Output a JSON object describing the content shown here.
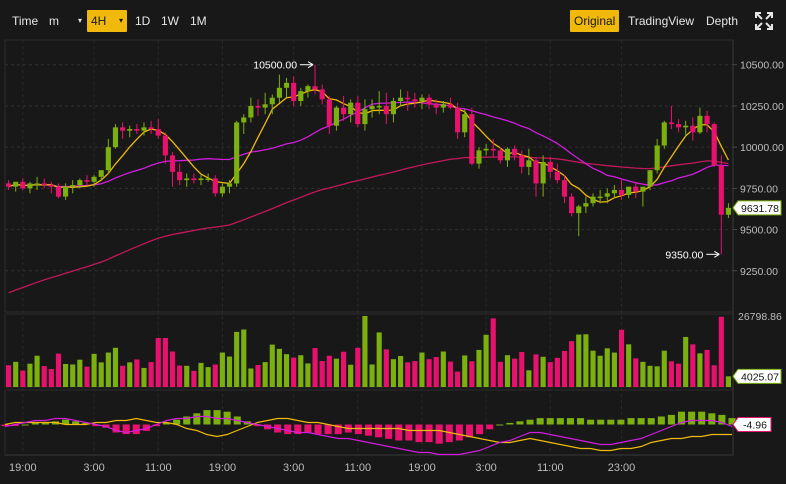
{
  "toolbar": {
    "time_label": "Time",
    "minute_label": "m",
    "h4_label": "4H",
    "d1_label": "1D",
    "w1_label": "1W",
    "m1_label": "1M",
    "original_label": "Original",
    "tradingview_label": "TradingView",
    "depth_label": "Depth"
  },
  "colors": {
    "up": "#7bb00e",
    "down": "#e8126e",
    "ma_short": "#f0b90b",
    "ma_mid": "#d21de0",
    "ma_long": "#c2185b",
    "accent": "#f0b90b",
    "background": "#181818"
  },
  "icons": {
    "fullscreen": "fullscreen-icon"
  },
  "chart_data": {
    "type": "candlestick",
    "timeframe": "4H",
    "y_ticks": [
      "10500.00",
      "10250.00",
      "10000.00",
      "9750.00",
      "9500.00",
      "9250.00"
    ],
    "y_tick_values": [
      10500,
      10250,
      10000,
      9750,
      9500,
      9250
    ],
    "ylim": [
      9000,
      10650
    ],
    "x_ticks": [
      "19:00",
      "3:00",
      "11:00",
      "19:00",
      "3:00",
      "11:00",
      "19:00",
      "3:00",
      "11:00",
      "23:00"
    ],
    "x_tick_candle_index": [
      2,
      12,
      21,
      30,
      40,
      49,
      58,
      67,
      76,
      86
    ],
    "high_annotation": "10500.00",
    "low_annotation": "9350.00",
    "last_price": "9631.78",
    "volume_max_label": "26798.86",
    "volume_last_label": "4025.07",
    "volume_max": 26798.86,
    "indicator_last_label": "-4.96",
    "candles": [
      [
        9780,
        9800,
        9740,
        9760
      ],
      [
        9760,
        9790,
        9730,
        9790
      ],
      [
        9790,
        9810,
        9740,
        9750
      ],
      [
        9750,
        9790,
        9720,
        9780
      ],
      [
        9780,
        9820,
        9740,
        9780
      ],
      [
        9780,
        9810,
        9750,
        9770
      ],
      [
        9770,
        9790,
        9720,
        9760
      ],
      [
        9760,
        9780,
        9690,
        9700
      ],
      [
        9700,
        9780,
        9680,
        9760
      ],
      [
        9760,
        9800,
        9720,
        9770
      ],
      [
        9770,
        9810,
        9750,
        9800
      ],
      [
        9800,
        9830,
        9770,
        9790
      ],
      [
        9790,
        9830,
        9760,
        9820
      ],
      [
        9820,
        9860,
        9800,
        9860
      ],
      [
        9860,
        10050,
        9840,
        10000
      ],
      [
        10000,
        10140,
        9990,
        10120
      ],
      [
        10120,
        10150,
        10050,
        10100
      ],
      [
        10100,
        10130,
        10060,
        10110
      ],
      [
        10110,
        10140,
        10080,
        10100
      ],
      [
        10100,
        10150,
        10070,
        10120
      ],
      [
        10120,
        10160,
        10080,
        10110
      ],
      [
        10110,
        10170,
        10050,
        10070
      ],
      [
        10070,
        10090,
        9900,
        9950
      ],
      [
        9950,
        9970,
        9760,
        9850
      ],
      [
        9850,
        9900,
        9770,
        9800
      ],
      [
        9800,
        9840,
        9760,
        9810
      ],
      [
        9810,
        9840,
        9780,
        9800
      ],
      [
        9800,
        9830,
        9770,
        9810
      ],
      [
        9810,
        9840,
        9790,
        9810
      ],
      [
        9810,
        9830,
        9700,
        9720
      ],
      [
        9720,
        9780,
        9700,
        9760
      ],
      [
        9760,
        9800,
        9720,
        9780
      ],
      [
        9780,
        10160,
        9760,
        10150
      ],
      [
        10150,
        10200,
        10080,
        10180
      ],
      [
        10180,
        10300,
        10150,
        10250
      ],
      [
        10250,
        10290,
        10190,
        10240
      ],
      [
        10240,
        10330,
        10200,
        10260
      ],
      [
        10260,
        10320,
        10200,
        10300
      ],
      [
        10300,
        10440,
        10270,
        10360
      ],
      [
        10360,
        10420,
        10300,
        10390
      ],
      [
        10390,
        10430,
        10250,
        10280
      ],
      [
        10280,
        10360,
        10250,
        10340
      ],
      [
        10340,
        10380,
        10300,
        10370
      ],
      [
        10370,
        10500,
        10320,
        10350
      ],
      [
        10350,
        10380,
        10260,
        10290
      ],
      [
        10290,
        10310,
        10080,
        10130
      ],
      [
        10130,
        10250,
        10100,
        10240
      ],
      [
        10240,
        10310,
        10160,
        10200
      ],
      [
        10200,
        10290,
        10150,
        10270
      ],
      [
        10270,
        10310,
        10120,
        10140
      ],
      [
        10140,
        10290,
        10100,
        10230
      ],
      [
        10230,
        10290,
        10180,
        10250
      ],
      [
        10250,
        10340,
        10200,
        10250
      ],
      [
        10250,
        10330,
        10140,
        10200
      ],
      [
        10200,
        10300,
        10150,
        10280
      ],
      [
        10280,
        10350,
        10250,
        10300
      ],
      [
        10300,
        10340,
        10220,
        10290
      ],
      [
        10290,
        10330,
        10240,
        10280
      ],
      [
        10280,
        10320,
        10230,
        10300
      ],
      [
        10300,
        10320,
        10230,
        10260
      ],
      [
        10260,
        10290,
        10200,
        10240
      ],
      [
        10240,
        10280,
        10210,
        10260
      ],
      [
        10260,
        10300,
        10230,
        10240
      ],
      [
        10240,
        10270,
        10050,
        10090
      ],
      [
        10090,
        10230,
        10060,
        10200
      ],
      [
        10200,
        10240,
        9890,
        9900
      ],
      [
        9900,
        10000,
        9870,
        9980
      ],
      [
        9980,
        10020,
        9950,
        9990
      ],
      [
        9990,
        10050,
        9940,
        9980
      ],
      [
        9980,
        10000,
        9900,
        9920
      ],
      [
        9920,
        10000,
        9880,
        9990
      ],
      [
        9990,
        10010,
        9920,
        9950
      ],
      [
        9950,
        9980,
        9840,
        9880
      ],
      [
        9880,
        9990,
        9830,
        9920
      ],
      [
        9920,
        9940,
        9700,
        9780
      ],
      [
        9780,
        9950,
        9700,
        9910
      ],
      [
        9910,
        9940,
        9810,
        9850
      ],
      [
        9850,
        9900,
        9780,
        9800
      ],
      [
        9800,
        9830,
        9660,
        9700
      ],
      [
        9700,
        9720,
        9580,
        9600
      ],
      [
        9600,
        9650,
        9460,
        9640
      ],
      [
        9640,
        9700,
        9600,
        9660
      ],
      [
        9660,
        9720,
        9640,
        9700
      ],
      [
        9700,
        9740,
        9660,
        9700
      ],
      [
        9700,
        9750,
        9660,
        9720
      ],
      [
        9720,
        9770,
        9690,
        9740
      ],
      [
        9740,
        9800,
        9680,
        9710
      ],
      [
        9710,
        9760,
        9690,
        9760
      ],
      [
        9760,
        9790,
        9690,
        9730
      ],
      [
        9730,
        9760,
        9640,
        9760
      ],
      [
        9760,
        9860,
        9740,
        9860
      ],
      [
        9860,
        10050,
        9840,
        10010
      ],
      [
        10010,
        10160,
        9990,
        10150
      ],
      [
        10150,
        10250,
        10110,
        10140
      ],
      [
        10140,
        10170,
        10090,
        10120
      ],
      [
        10120,
        10160,
        10060,
        10130
      ],
      [
        10130,
        10180,
        10040,
        10090
      ],
      [
        10090,
        10240,
        10080,
        10190
      ],
      [
        10190,
        10220,
        10090,
        10140
      ],
      [
        10140,
        10150,
        9880,
        9890
      ],
      [
        9890,
        9950,
        9350,
        9590
      ],
      [
        9590,
        9660,
        9570,
        9631.78
      ]
    ],
    "volumes": [
      8200,
      9500,
      6200,
      8800,
      11800,
      7900,
      6800,
      12600,
      8700,
      8500,
      10300,
      7700,
      12500,
      9300,
      13000,
      14800,
      8000,
      9300,
      10400,
      7200,
      9400,
      18500,
      18500,
      13400,
      8100,
      8000,
      6100,
      9100,
      7500,
      8500,
      13000,
      11500,
      20800,
      21700,
      7000,
      8300,
      9400,
      16000,
      14400,
      12400,
      11100,
      12000,
      8900,
      14700,
      9800,
      11800,
      10700,
      13300,
      8400,
      14800,
      26800,
      8500,
      20600,
      14200,
      10500,
      11700,
      9300,
      9800,
      13000,
      10500,
      11300,
      13400,
      9600,
      5800,
      11900,
      9700,
      14000,
      19700,
      25900,
      9500,
      12000,
      10700,
      13200,
      6300,
      12300,
      11400,
      9400,
      11000,
      13600,
      17300,
      19800,
      19900,
      13700,
      11800,
      14600,
      13000,
      21600,
      16100,
      10800,
      9500,
      8000,
      7800,
      13700,
      9700,
      8800,
      18900,
      16100,
      12700,
      14000,
      8200,
      26500,
      4025.07
    ],
    "indicator_line_a": [
      0,
      1,
      1,
      1,
      1,
      1,
      0,
      0,
      0,
      1,
      1,
      2,
      2,
      3,
      2,
      1,
      1,
      0,
      -2,
      -3,
      -5,
      -6,
      -5,
      -3,
      -1,
      1,
      2,
      3,
      3,
      2,
      1,
      1,
      0,
      -1,
      -2,
      -2,
      -2,
      -2,
      -2,
      -2,
      -3,
      -3,
      -3,
      -3,
      -4,
      -5,
      -6,
      -7,
      -8,
      -9,
      -9,
      -8,
      -7,
      -8,
      -9,
      -10,
      -11,
      -12,
      -12,
      -13,
      -13,
      -12,
      -12,
      -11,
      -9,
      -8,
      -7,
      -7,
      -6,
      -6,
      -5,
      -5,
      -5
    ],
    "indicator_line_b": [
      -1,
      0,
      1,
      2,
      2,
      3,
      3,
      2,
      1,
      0,
      -1,
      -3,
      -4,
      -3,
      -2,
      0,
      2,
      3,
      3,
      4,
      4,
      3,
      3,
      2,
      1,
      0,
      -1,
      -2,
      -3,
      -4,
      -4,
      -5,
      -6,
      -7,
      -7,
      -8,
      -9,
      -10,
      -11,
      -12,
      -13,
      -14,
      -14,
      -15,
      -15,
      -15,
      -14,
      -13,
      -11,
      -9,
      -8,
      -6,
      -4,
      -4,
      -5,
      -6,
      -7,
      -8,
      -9,
      -10,
      -10,
      -9,
      -8,
      -7,
      -5,
      -3,
      -1,
      1,
      2,
      2,
      2,
      1,
      -1
    ]
  }
}
